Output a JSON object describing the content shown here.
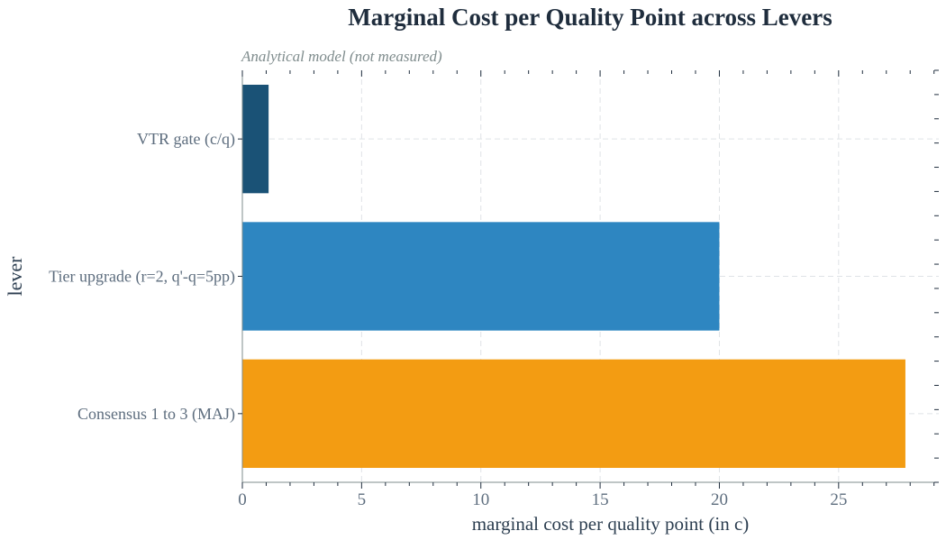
{
  "chart_data": {
    "type": "bar",
    "orientation": "horizontal",
    "title": "Marginal Cost per Quality Point across Levers",
    "subtitle": "Analytical model (not measured)",
    "xlabel": "marginal cost per quality point (in c)",
    "ylabel": "lever",
    "categories": [
      "VTR gate (c/q)",
      "Tier upgrade (r=2, q'-q=5pp)",
      "Consensus 1 to 3 (MAJ)"
    ],
    "values": [
      1.1,
      20.0,
      27.8
    ],
    "colors": [
      "#1a5276",
      "#2e86c1",
      "#f39c12"
    ],
    "xlim": [
      0,
      29.2
    ],
    "xticks": [
      0,
      5,
      10,
      15,
      20,
      25
    ],
    "grid": true,
    "legend": "none"
  }
}
